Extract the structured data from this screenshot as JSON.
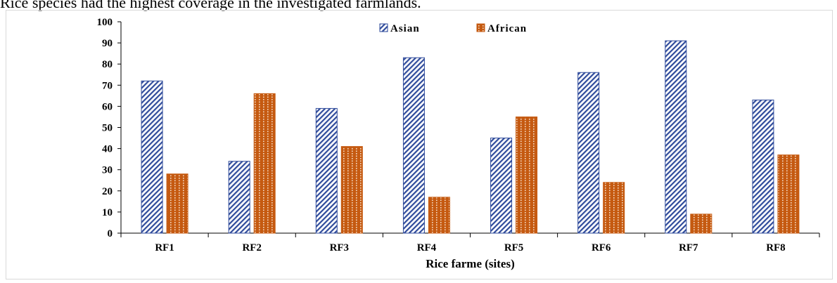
{
  "caption": "Rice species had the highest coverage in the investigated farmlands.",
  "colors": {
    "asian": "#2f4b9b",
    "african": "#c55a11"
  },
  "chart_data": {
    "type": "bar",
    "title": "",
    "xlabel": "Rice farme (sites)",
    "ylabel": "",
    "categories": [
      "RF1",
      "RF2",
      "RF3",
      "RF4",
      "RF5",
      "RF6",
      "RF7",
      "RF8"
    ],
    "series": [
      {
        "name": "Asian",
        "values": [
          72,
          34,
          59,
          83,
          45,
          76,
          91,
          63
        ]
      },
      {
        "name": "African",
        "values": [
          28,
          66,
          41,
          17,
          55,
          24,
          9,
          37
        ]
      }
    ],
    "ylim": [
      0,
      100
    ],
    "yticks": [
      0,
      10,
      20,
      30,
      40,
      50,
      60,
      70,
      80,
      90,
      100
    ],
    "grid": false,
    "legend": "top-center"
  }
}
